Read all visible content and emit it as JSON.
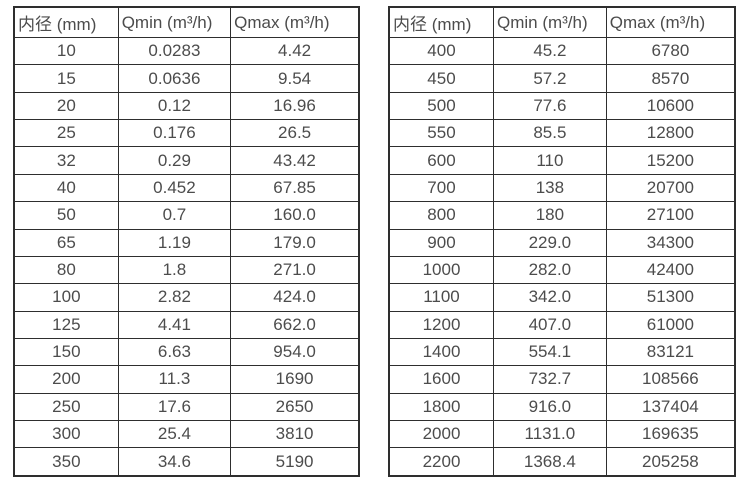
{
  "page": {
    "background_color": "#ffffff",
    "border_color": "#2e2e2e",
    "text_color": "#4c4c4c"
  },
  "tables": [
    {
      "name": "flow-table-small-diameters",
      "headers": [
        "内径 (mm)",
        "Qmin (m³/h)",
        "Qmax (m³/h)"
      ],
      "rows": [
        [
          "10",
          "0.0283",
          "4.42"
        ],
        [
          "15",
          "0.0636",
          "9.54"
        ],
        [
          "20",
          "0.12",
          "16.96"
        ],
        [
          "25",
          "0.176",
          "26.5"
        ],
        [
          "32",
          "0.29",
          "43.42"
        ],
        [
          "40",
          "0.452",
          "67.85"
        ],
        [
          "50",
          "0.7",
          "160.0"
        ],
        [
          "65",
          "1.19",
          "179.0"
        ],
        [
          "80",
          "1.8",
          "271.0"
        ],
        [
          "100",
          "2.82",
          "424.0"
        ],
        [
          "125",
          "4.41",
          "662.0"
        ],
        [
          "150",
          "6.63",
          "954.0"
        ],
        [
          "200",
          "11.3",
          "1690"
        ],
        [
          "250",
          "17.6",
          "2650"
        ],
        [
          "300",
          "25.4",
          "3810"
        ],
        [
          "350",
          "34.6",
          "5190"
        ]
      ]
    },
    {
      "name": "flow-table-large-diameters",
      "headers": [
        "内径 (mm)",
        "Qmin (m³/h)",
        "Qmax (m³/h)"
      ],
      "rows": [
        [
          "400",
          "45.2",
          "6780"
        ],
        [
          "450",
          "57.2",
          "8570"
        ],
        [
          "500",
          "77.6",
          "10600"
        ],
        [
          "550",
          "85.5",
          "12800"
        ],
        [
          "600",
          "110",
          "15200"
        ],
        [
          "700",
          "138",
          "20700"
        ],
        [
          "800",
          "180",
          "27100"
        ],
        [
          "900",
          "229.0",
          "34300"
        ],
        [
          "1000",
          "282.0",
          "42400"
        ],
        [
          "1100",
          "342.0",
          "51300"
        ],
        [
          "1200",
          "407.0",
          "61000"
        ],
        [
          "1400",
          "554.1",
          "83121"
        ],
        [
          "1600",
          "732.7",
          "108566"
        ],
        [
          "1800",
          "916.0",
          "137404"
        ],
        [
          "2000",
          "1131.0",
          "169635"
        ],
        [
          "2200",
          "1368.4",
          "205258"
        ]
      ]
    }
  ]
}
